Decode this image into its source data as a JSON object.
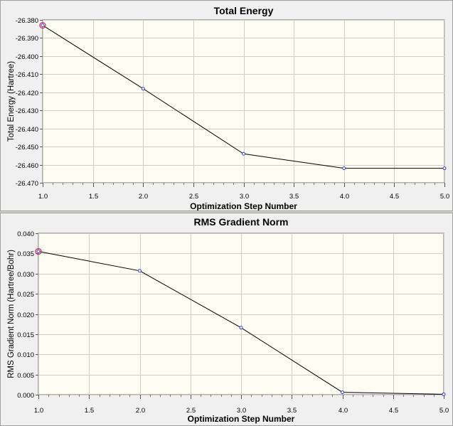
{
  "colors": {
    "plot_background": "#fdfdf3",
    "grid": "#cfcfc4",
    "line": "#000000",
    "point": "#3b3bd6",
    "highlight": "#cc3355"
  },
  "chart_data": [
    {
      "type": "line",
      "title": "Total Energy",
      "xlabel": "Optimization Step Number",
      "ylabel": "Total Energy (Hartree)",
      "x": [
        1,
        2,
        3,
        4,
        5
      ],
      "y": [
        -26.383,
        -26.418,
        -26.454,
        -26.462,
        -26.462
      ],
      "xlim": [
        1.0,
        5.0
      ],
      "ylim": [
        -26.47,
        -26.38
      ],
      "xticks": [
        "1.0",
        "1.5",
        "2.0",
        "2.5",
        "3.0",
        "3.5",
        "4.0",
        "4.5",
        "5.0"
      ],
      "yticks": [
        "-26.380",
        "-26.390",
        "-26.400",
        "-26.410",
        "-26.420",
        "-26.430",
        "-26.440",
        "-26.450",
        "-26.460",
        "-26.470"
      ],
      "highlight_point": 1,
      "grid": true
    },
    {
      "type": "line",
      "title": "RMS Gradient Norm",
      "xlabel": "Optimization Step Number",
      "ylabel": "RMS Gradient Norm (Hartree/Bohr)",
      "x": [
        1,
        2,
        3,
        4,
        5
      ],
      "y": [
        0.0355,
        0.0307,
        0.0166,
        0.0006,
        0.0001
      ],
      "xlim": [
        1.0,
        5.0
      ],
      "ylim": [
        0.0,
        0.04
      ],
      "xticks": [
        "1.0",
        "1.5",
        "2.0",
        "2.5",
        "3.0",
        "3.5",
        "4.0",
        "4.5",
        "5.0"
      ],
      "yticks": [
        "0.040",
        "0.035",
        "0.030",
        "0.025",
        "0.020",
        "0.015",
        "0.010",
        "0.005",
        "0.000"
      ],
      "highlight_point": 1,
      "grid": true
    }
  ]
}
